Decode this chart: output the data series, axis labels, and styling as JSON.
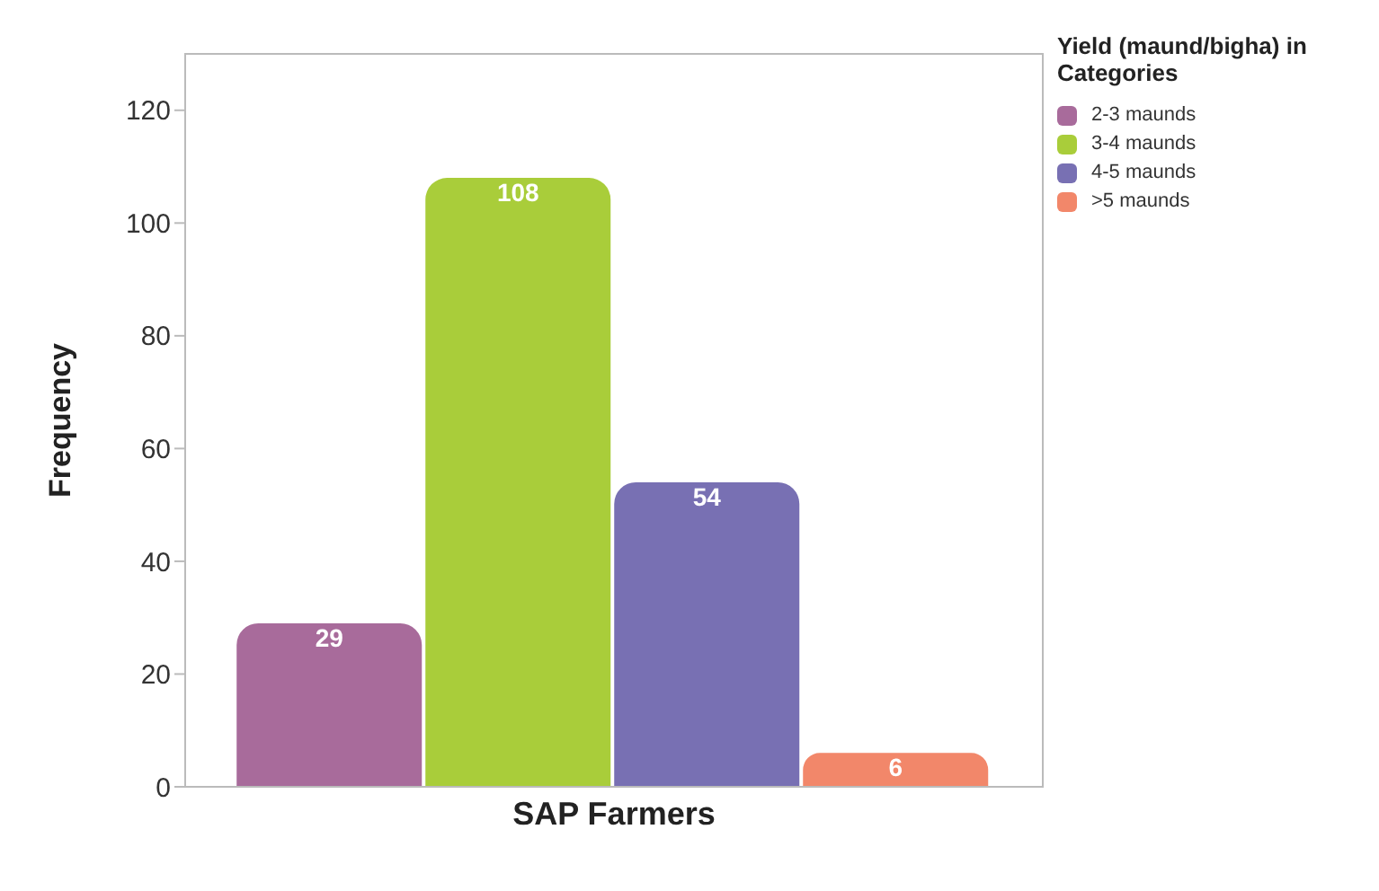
{
  "chart_data": {
    "type": "bar",
    "categories": [
      "SAP Farmers"
    ],
    "ylabel": "Frequency",
    "legend_title": "Yield (maund/bigha) in Categories",
    "series": [
      {
        "name": "2-3 maunds",
        "color": "#a86b9b",
        "values": [
          29
        ]
      },
      {
        "name": "3-4 maunds",
        "color": "#a9cd3a",
        "values": [
          108
        ]
      },
      {
        "name": "4-5 maunds",
        "color": "#7870b3",
        "values": [
          54
        ]
      },
      {
        "name": ">5 maunds",
        "color": "#f2876a",
        "values": [
          6
        ]
      }
    ],
    "ylim": [
      0,
      130
    ],
    "yticks": [
      0,
      20,
      40,
      60,
      80,
      100,
      120
    ],
    "data_labels": true,
    "legend": "top right",
    "grid": false
  }
}
